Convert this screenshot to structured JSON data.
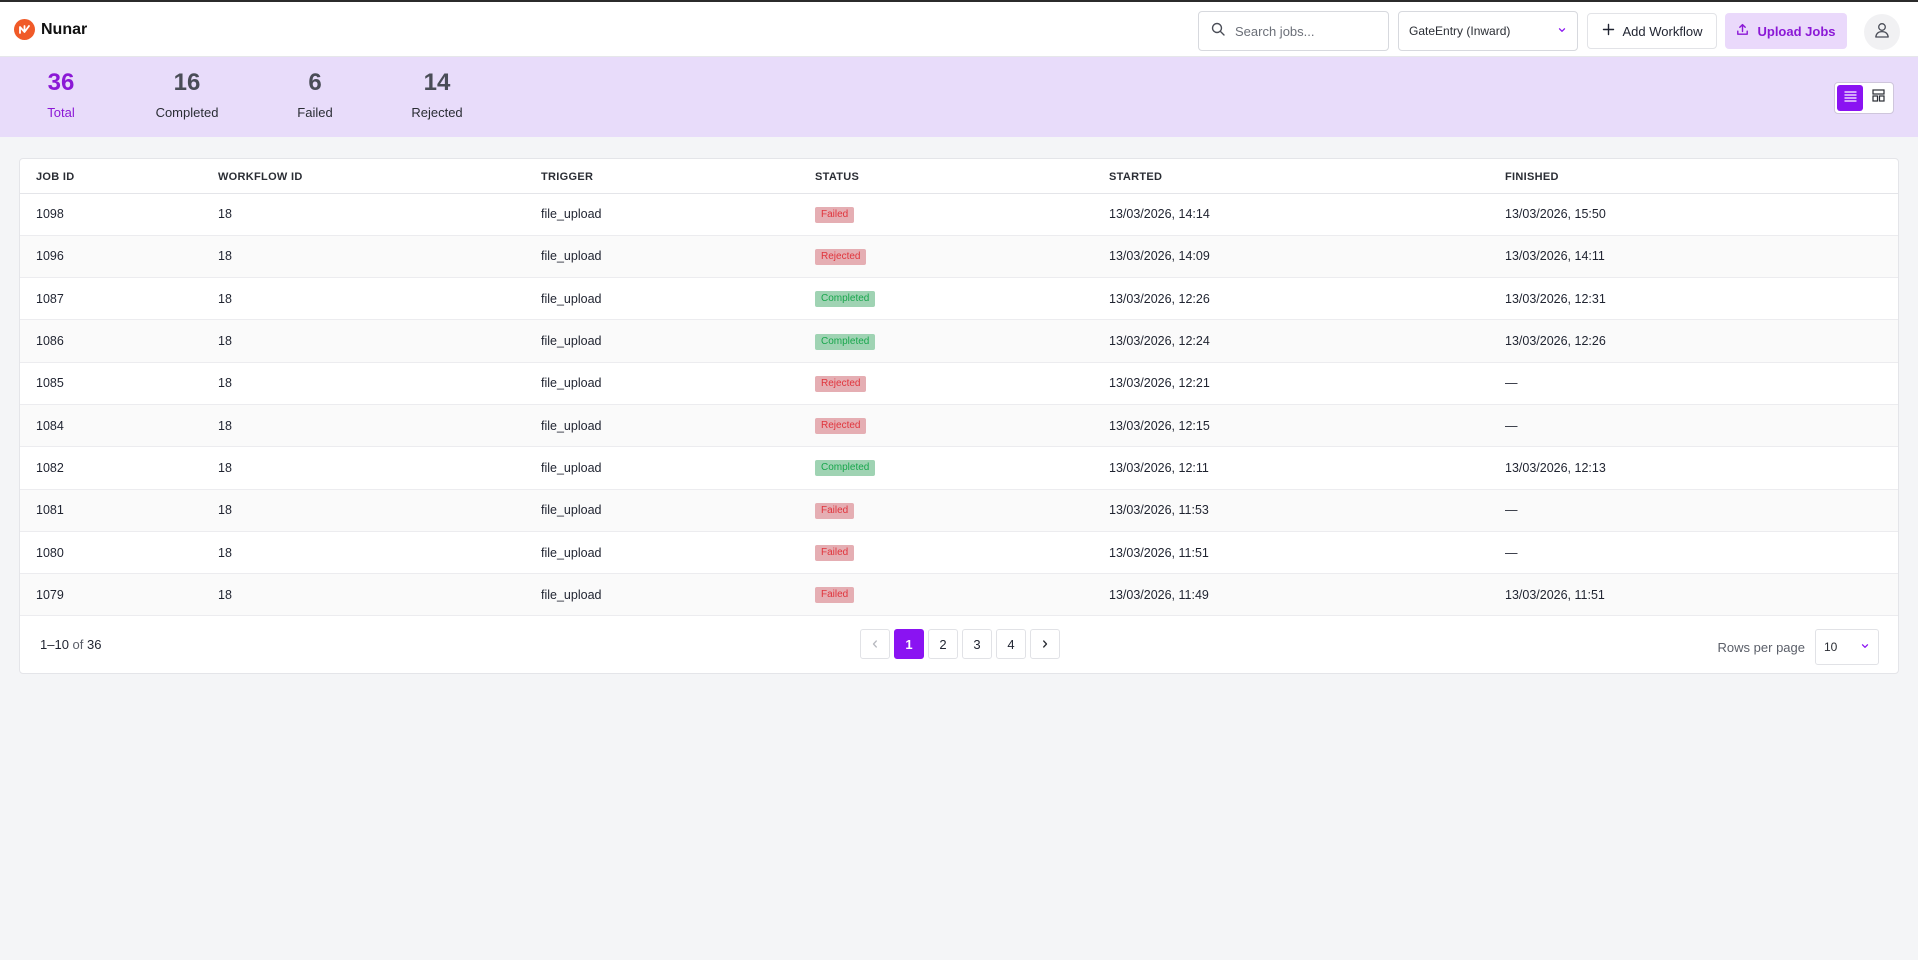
{
  "app": {
    "name": "Nunar"
  },
  "header": {
    "search": {
      "placeholder": "Search jobs..."
    },
    "workflow_select": {
      "value": "GateEntry (Inward)"
    },
    "add_workflow_label": "Add Workflow",
    "upload_jobs_label": "Upload Jobs"
  },
  "stats": [
    {
      "value": "36",
      "label": "Total"
    },
    {
      "value": "16",
      "label": "Completed"
    },
    {
      "value": "6",
      "label": "Failed"
    },
    {
      "value": "14",
      "label": "Rejected"
    }
  ],
  "table": {
    "columns": [
      "JOB ID",
      "WORKFLOW ID",
      "TRIGGER",
      "STATUS",
      "STARTED",
      "FINISHED"
    ],
    "rows": [
      {
        "job_id": "1098",
        "workflow_id": "18",
        "trigger": "file_upload",
        "status": "Failed",
        "started": "13/03/2026, 14:14",
        "finished": "13/03/2026, 15:50"
      },
      {
        "job_id": "1096",
        "workflow_id": "18",
        "trigger": "file_upload",
        "status": "Rejected",
        "started": "13/03/2026, 14:09",
        "finished": "13/03/2026, 14:11"
      },
      {
        "job_id": "1087",
        "workflow_id": "18",
        "trigger": "file_upload",
        "status": "Completed",
        "started": "13/03/2026, 12:26",
        "finished": "13/03/2026, 12:31"
      },
      {
        "job_id": "1086",
        "workflow_id": "18",
        "trigger": "file_upload",
        "status": "Completed",
        "started": "13/03/2026, 12:24",
        "finished": "13/03/2026, 12:26"
      },
      {
        "job_id": "1085",
        "workflow_id": "18",
        "trigger": "file_upload",
        "status": "Rejected",
        "started": "13/03/2026, 12:21",
        "finished": "—"
      },
      {
        "job_id": "1084",
        "workflow_id": "18",
        "trigger": "file_upload",
        "status": "Rejected",
        "started": "13/03/2026, 12:15",
        "finished": "—"
      },
      {
        "job_id": "1082",
        "workflow_id": "18",
        "trigger": "file_upload",
        "status": "Completed",
        "started": "13/03/2026, 12:11",
        "finished": "13/03/2026, 12:13"
      },
      {
        "job_id": "1081",
        "workflow_id": "18",
        "trigger": "file_upload",
        "status": "Failed",
        "started": "13/03/2026, 11:53",
        "finished": "—"
      },
      {
        "job_id": "1080",
        "workflow_id": "18",
        "trigger": "file_upload",
        "status": "Failed",
        "started": "13/03/2026, 11:51",
        "finished": "—"
      },
      {
        "job_id": "1079",
        "workflow_id": "18",
        "trigger": "file_upload",
        "status": "Failed",
        "started": "13/03/2026, 11:49",
        "finished": "13/03/2026, 11:51"
      }
    ]
  },
  "pagination": {
    "range": "1–10",
    "of_label": "of",
    "total": "36",
    "pages": [
      "1",
      "2",
      "3",
      "4"
    ],
    "current": "1",
    "rows_per_page_label": "Rows per page",
    "rows_per_page": "10"
  },
  "colors": {
    "accent": "#8a13f2",
    "stats_bg": "#e8dcfa",
    "brand_logo": "#f05a28"
  }
}
